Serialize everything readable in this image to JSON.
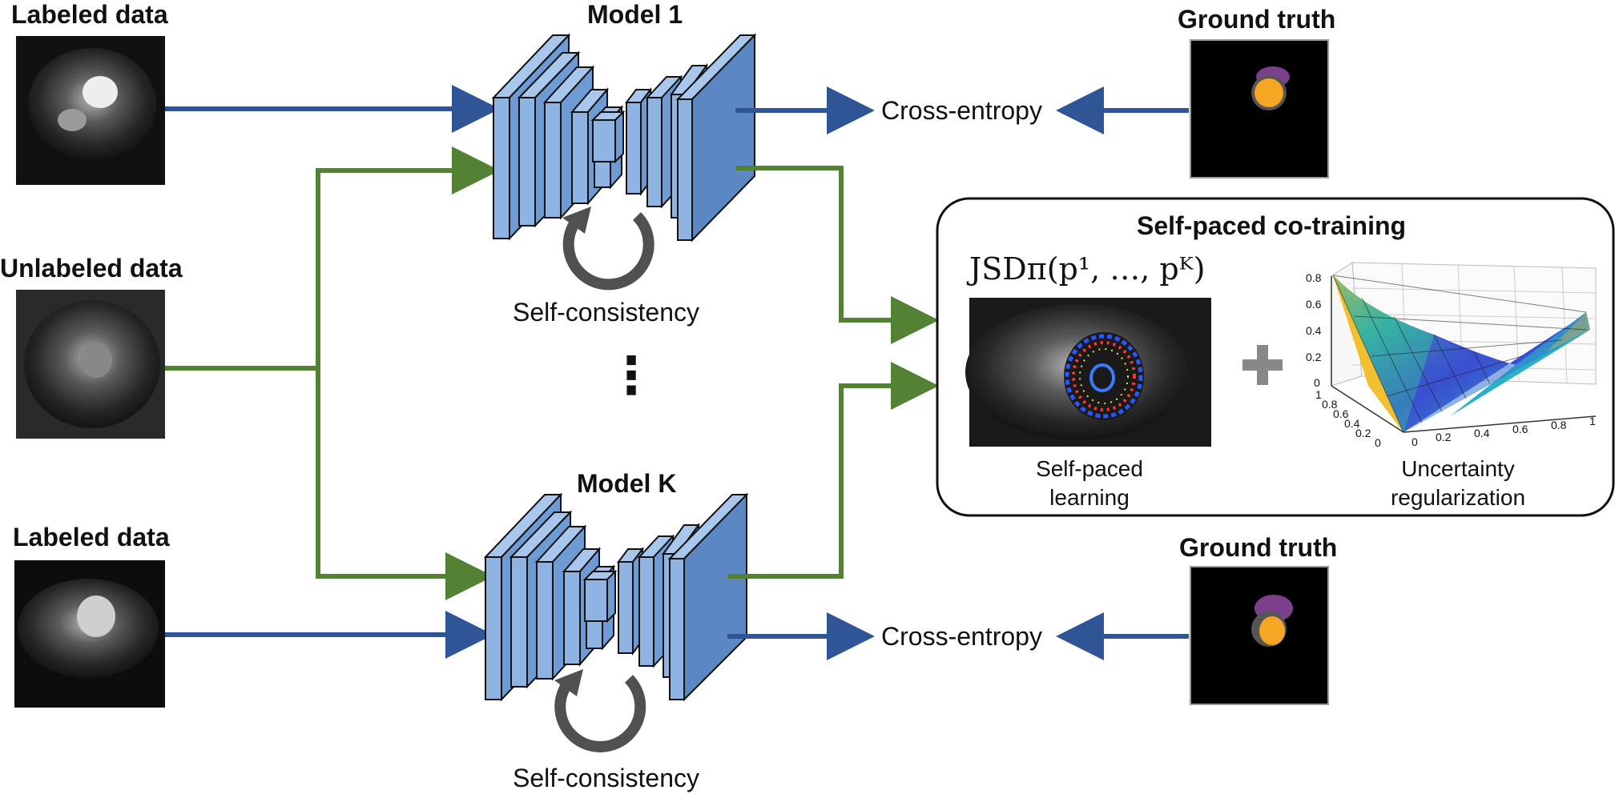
{
  "inputs": {
    "top_label": "Labeled data",
    "middle_label": "Unlabeled data",
    "bottom_label": "Labeled data"
  },
  "models": {
    "top_title": "Model 1",
    "bottom_title": "Model K",
    "self_consistency_top": "Self-consistency",
    "self_consistency_bottom": "Self-consistency",
    "ellipsis": "⋮"
  },
  "loss": {
    "top": "Cross-entropy",
    "bottom": "Cross-entropy"
  },
  "ground_truth": {
    "top": "Ground truth",
    "bottom": "Ground truth"
  },
  "cotraining": {
    "title": "Self-paced co-training",
    "formula": "JSDπ(p¹, …, pᴷ)",
    "plus": "+",
    "left_caption_line1": "Self-paced",
    "left_caption_line2": "learning",
    "right_caption_line1": "Uncertainty",
    "right_caption_line2": "regularization",
    "z_ticks": [
      "0.8",
      "0.6",
      "0.4",
      "0.2",
      "0"
    ],
    "left_axis_ticks": [
      "1",
      "0.8",
      "0.6",
      "0.4",
      "0.2",
      "0"
    ],
    "right_axis_ticks": [
      "0",
      "0.2",
      "0.4",
      "0.6",
      "0.8",
      "1"
    ]
  },
  "colors": {
    "blue_arrow": "#2f5597",
    "green_arrow": "#548235",
    "layer_fill": "#8fb4e3",
    "layer_dark": "#5a8ac6",
    "myocardium": "#7b3f8c",
    "blood_pool": "#f5a623"
  }
}
